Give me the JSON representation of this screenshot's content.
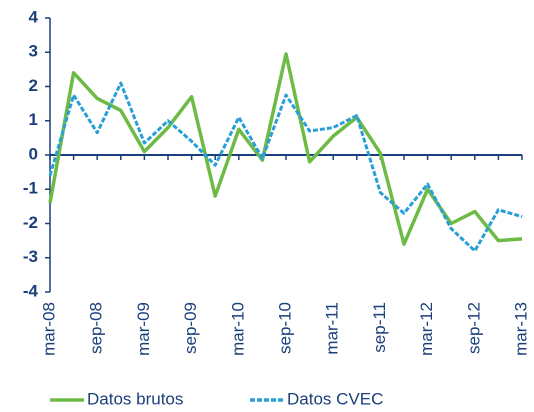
{
  "chart_data": {
    "type": "line",
    "categories": [
      "mar-08",
      null,
      "sep-08",
      null,
      "mar-09",
      null,
      "sep-09",
      null,
      "mar-10",
      null,
      "sep-10",
      null,
      "mar-11",
      null,
      "sep-11",
      null,
      "mar-12",
      null,
      "sep-12",
      null,
      "mar-13"
    ],
    "series": [
      {
        "name": "Datos brutos",
        "color": "#6dbb45",
        "dash": false,
        "values": [
          -1.4,
          2.4,
          1.65,
          1.3,
          0.1,
          0.8,
          1.7,
          -1.2,
          0.75,
          -0.15,
          2.95,
          -0.2,
          0.55,
          1.1,
          0.05,
          -2.6,
          -1.0,
          -2.0,
          -1.65,
          -2.5,
          -2.45
        ]
      },
      {
        "name": "Datos CVEC",
        "color": "#2a9fd6",
        "dash": true,
        "values": [
          -0.6,
          1.75,
          0.65,
          2.1,
          0.35,
          1.0,
          0.4,
          -0.3,
          1.1,
          -0.1,
          1.75,
          0.7,
          0.8,
          1.15,
          -1.1,
          -1.7,
          -0.85,
          -2.15,
          -2.8,
          -1.6,
          -1.8
        ]
      }
    ],
    "ylim": [
      -4,
      4
    ],
    "yticks": [
      -4,
      -3,
      -2,
      -1,
      0,
      1,
      2,
      3,
      4
    ],
    "grid": false,
    "legend": "bottom"
  }
}
